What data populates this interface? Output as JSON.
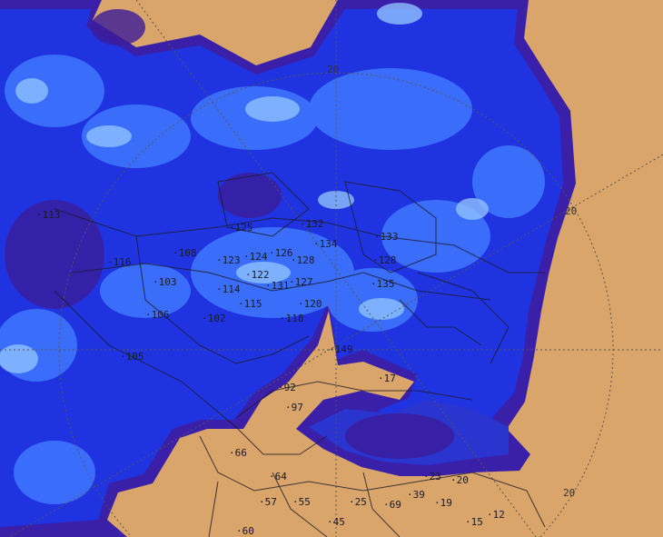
{
  "map": {
    "type": "weather radar precipitation map",
    "colors": {
      "land": "#d9a56a",
      "precip_light": "#6fa8ff",
      "precip_medium": "#2b5cf0",
      "precip_heavy": "#1f2ed8",
      "precip_edge": "#3a1fa8",
      "boundaries": "#1a1a2a"
    },
    "range_ring_labels": [
      "20",
      "20",
      "20"
    ],
    "station_labels": [
      "113",
      "108",
      "116",
      "103",
      "106",
      "105",
      "102",
      "123",
      "124",
      "126",
      "128",
      "122",
      "131",
      "127",
      "114",
      "115",
      "120",
      "118",
      "125",
      "132",
      "134",
      "133",
      "128",
      "135",
      "149",
      "92",
      "97",
      "66",
      "64",
      "57",
      "55",
      "60",
      "45",
      "25",
      "15",
      "12",
      "19",
      "20",
      "23",
      "39",
      "69",
      "17"
    ]
  }
}
